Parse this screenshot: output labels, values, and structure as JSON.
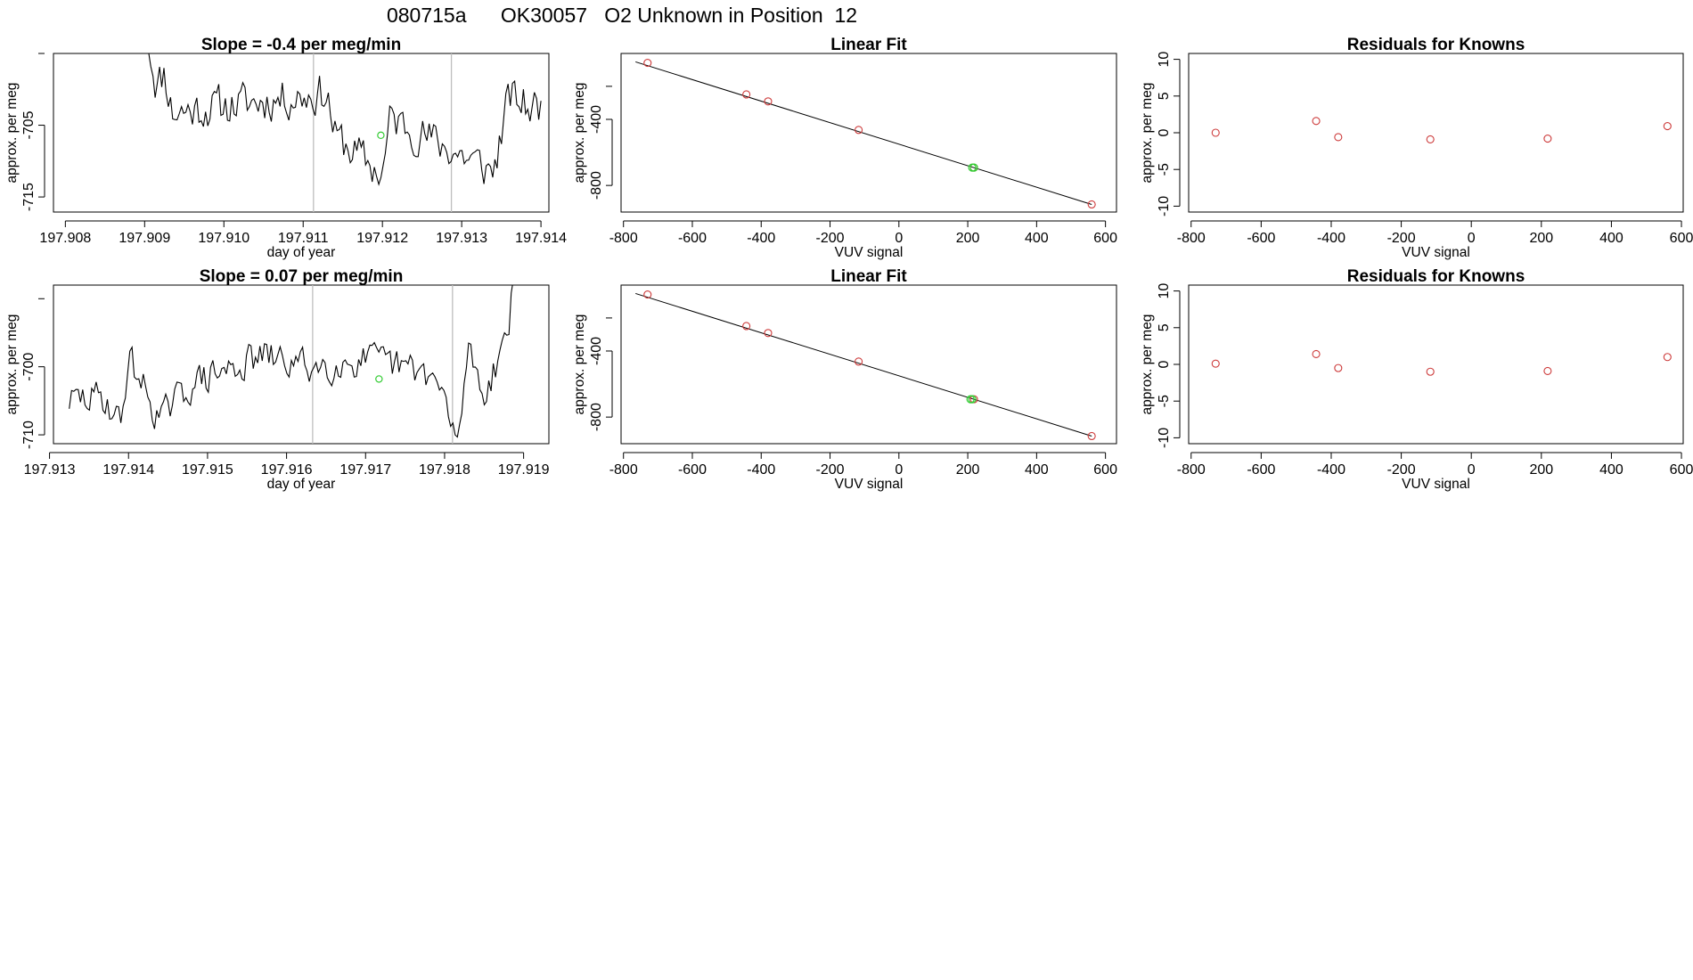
{
  "page_title": "080715a      OK30057   O2 Unknown in Position  12",
  "colors": {
    "known_point": "#cd3b3b",
    "unknown_point": "#33cc33",
    "line": "#000000",
    "vline": "#bebebe"
  },
  "chart_data": [
    {
      "id": "ts1",
      "type": "line",
      "title": "Slope =  -0.4  per meg/min",
      "xlabel": "day of year",
      "ylabel": "approx. per meg",
      "xlim": [
        197.90785,
        197.9141
      ],
      "ylim": [
        -717.1,
        -695.0
      ],
      "xticks": [
        197.908,
        197.909,
        197.91,
        197.911,
        197.912,
        197.913,
        197.914
      ],
      "xtick_labels": [
        "197.908",
        "197.909",
        "197.910",
        "197.911",
        "197.912",
        "197.913",
        "197.914"
      ],
      "yticks": [
        -715,
        -705
      ],
      "ytick_labels": [
        "-715",
        "-705"
      ],
      "yextra_ticks": [
        -695
      ],
      "vlines": [
        197.91113,
        197.91287
      ],
      "series": {
        "x_start": 197.90905,
        "x_end": 197.914,
        "n": 180,
        "seed": 11,
        "base": -705.8,
        "noise": 2.6,
        "anchors": [
          [
            197.90905,
            -693.5
          ],
          [
            197.90915,
            -699.5
          ],
          [
            197.90925,
            -697.5
          ],
          [
            197.90935,
            -703.2
          ],
          [
            197.9095,
            -703.0
          ],
          [
            197.9113,
            -700.5
          ],
          [
            197.9114,
            -706.5
          ],
          [
            197.912,
            -712.0
          ],
          [
            197.9121,
            -704.0
          ],
          [
            197.9134,
            -711.5
          ],
          [
            197.9136,
            -701.0
          ],
          [
            197.91385,
            -702.5
          ]
        ]
      },
      "marker": {
        "x": 197.91198,
        "y": -706.4
      }
    },
    {
      "id": "fit1",
      "type": "scatter",
      "title": "Linear Fit",
      "xlabel": "VUV signal",
      "ylabel": "approx. per meg",
      "xlim": [
        -807,
        632
      ],
      "ylim": [
        -961,
        -1
      ],
      "xticks": [
        -800,
        -600,
        -400,
        -200,
        0,
        200,
        400,
        600
      ],
      "xtick_labels": [
        "-800",
        "-600",
        "-400",
        "-200",
        "0",
        "200",
        "400",
        "600"
      ],
      "yticks": [
        -800,
        -400
      ],
      "ytick_labels": [
        "-800",
        "-400"
      ],
      "yextra_ticks": [
        -1200,
        -200
      ],
      "fit_line": {
        "x0": -765,
        "x1": 560,
        "y0": -52,
        "y1": -915
      },
      "knowns": [
        [
          -730,
          -58
        ],
        [
          -443,
          -249
        ],
        [
          -380,
          -291
        ],
        [
          -117,
          -464
        ],
        [
          218,
          -692
        ],
        [
          560,
          -915
        ]
      ],
      "unknowns": [
        [
          213,
          -692
        ],
        [
          218,
          -692
        ]
      ]
    },
    {
      "id": "res1",
      "type": "scatter",
      "title": "Residuals for Knowns",
      "xlabel": "VUV signal",
      "ylabel": "approx. per meg",
      "xlim": [
        -807,
        605
      ],
      "ylim": [
        -10.8,
        10.8
      ],
      "xticks": [
        -800,
        -600,
        -400,
        -200,
        0,
        200,
        400,
        600
      ],
      "xtick_labels": [
        "-800",
        "-600",
        "-400",
        "-200",
        "0",
        "200",
        "400",
        "600"
      ],
      "yticks": [
        -10,
        -5,
        0,
        5,
        10
      ],
      "ytick_labels": [
        "-10",
        "-5",
        "0",
        "5",
        "10"
      ],
      "knowns": [
        [
          -730,
          0.0
        ],
        [
          -443,
          1.6
        ],
        [
          -380,
          -0.6
        ],
        [
          -117,
          -0.9
        ],
        [
          218,
          -0.8
        ],
        [
          560,
          0.9
        ]
      ]
    },
    {
      "id": "ts2",
      "type": "line",
      "title": "Slope =  0.07  per meg/min",
      "xlabel": "day of year",
      "ylabel": "approx. per meg",
      "xlim": [
        197.91305,
        197.91932
      ],
      "ylim": [
        -711.3,
        -688.0
      ],
      "xticks": [
        197.913,
        197.914,
        197.915,
        197.916,
        197.917,
        197.918,
        197.919
      ],
      "xtick_labels": [
        "197.913",
        "197.914",
        "197.915",
        "197.916",
        "197.917",
        "197.918",
        "197.919"
      ],
      "yticks": [
        -710,
        -700
      ],
      "ytick_labels": [
        "-710",
        "-700"
      ],
      "yextra_ticks": [
        -690
      ],
      "vlines": [
        197.91633,
        197.9181
      ],
      "series": {
        "x_start": 197.91325,
        "x_end": 197.9189,
        "n": 200,
        "seed": 29,
        "base": -702.2,
        "noise": 2.3,
        "anchors": [
          [
            197.91325,
            -705.0
          ],
          [
            197.9137,
            -704.5
          ],
          [
            197.9139,
            -708.5
          ],
          [
            197.914,
            -698.5
          ],
          [
            197.9144,
            -707.8
          ],
          [
            197.9148,
            -702.5
          ],
          [
            197.9157,
            -698.5
          ],
          [
            197.9163,
            -700.0
          ],
          [
            197.917,
            -699.0
          ],
          [
            197.9178,
            -701.0
          ],
          [
            197.918,
            -704.5
          ],
          [
            197.91815,
            -712.5
          ],
          [
            197.9183,
            -697.0
          ],
          [
            197.9185,
            -704.0
          ],
          [
            197.9187,
            -698.0
          ],
          [
            197.9188,
            -694.0
          ],
          [
            197.9189,
            -686.0
          ]
        ]
      },
      "marker": {
        "x": 197.91717,
        "y": -701.8
      }
    },
    {
      "id": "fit2",
      "type": "scatter",
      "title": "Linear Fit",
      "xlabel": "VUV signal",
      "ylabel": "approx. per meg",
      "xlim": [
        -807,
        632
      ],
      "ylim": [
        -961,
        -1
      ],
      "xticks": [
        -800,
        -600,
        -400,
        -200,
        0,
        200,
        400,
        600
      ],
      "xtick_labels": [
        "-800",
        "-600",
        "-400",
        "-200",
        "0",
        "200",
        "400",
        "600"
      ],
      "yticks": [
        -800,
        -400
      ],
      "ytick_labels": [
        "-800",
        "-400"
      ],
      "yextra_ticks": [
        -1200,
        -200
      ],
      "fit_line": {
        "x0": -765,
        "x1": 560,
        "y0": -52,
        "y1": -915
      },
      "knowns": [
        [
          -730,
          -58
        ],
        [
          -443,
          -249
        ],
        [
          -380,
          -291
        ],
        [
          -117,
          -464
        ],
        [
          218,
          -692
        ],
        [
          560,
          -915
        ]
      ],
      "unknowns": [
        [
          208,
          -692
        ],
        [
          213,
          -692
        ]
      ]
    },
    {
      "id": "res2",
      "type": "scatter",
      "title": "Residuals for Knowns",
      "xlabel": "VUV signal",
      "ylabel": "approx. per meg",
      "xlim": [
        -807,
        605
      ],
      "ylim": [
        -10.8,
        10.8
      ],
      "xticks": [
        -800,
        -600,
        -400,
        -200,
        0,
        200,
        400,
        600
      ],
      "xtick_labels": [
        "-800",
        "-600",
        "-400",
        "-200",
        "0",
        "200",
        "400",
        "600"
      ],
      "yticks": [
        -10,
        -5,
        0,
        5,
        10
      ],
      "ytick_labels": [
        "-10",
        "-5",
        "0",
        "5",
        "10"
      ],
      "knowns": [
        [
          -730,
          0.1
        ],
        [
          -443,
          1.4
        ],
        [
          -380,
          -0.5
        ],
        [
          -117,
          -1.0
        ],
        [
          218,
          -0.9
        ],
        [
          560,
          1.0
        ]
      ]
    }
  ]
}
